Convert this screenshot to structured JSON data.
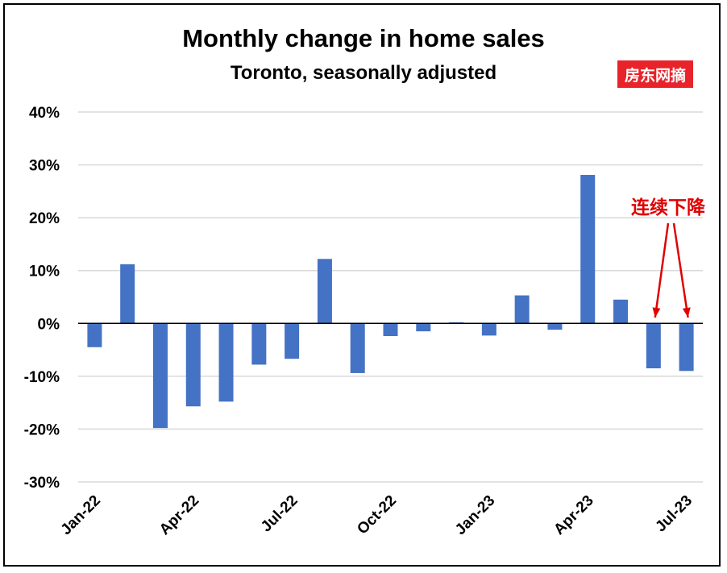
{
  "chart_data": {
    "type": "bar",
    "title": "Monthly change in home sales",
    "subtitle": "Toronto, seasonally adjusted",
    "xlabel": "",
    "ylabel": "",
    "categories": [
      "Jan-22",
      "Feb-22",
      "Mar-22",
      "Apr-22",
      "May-22",
      "Jun-22",
      "Jul-22",
      "Aug-22",
      "Sep-22",
      "Oct-22",
      "Nov-22",
      "Dec-22",
      "Jan-23",
      "Feb-23",
      "Mar-23",
      "Apr-23",
      "May-23",
      "Jun-23",
      "Jul-23"
    ],
    "x_tick_labels": [
      "Jan-22",
      "Apr-22",
      "Jul-22",
      "Oct-22",
      "Jan-23",
      "Apr-23",
      "Jul-23"
    ],
    "x_tick_indices": [
      0,
      3,
      6,
      9,
      12,
      15,
      18
    ],
    "series": [
      {
        "values": [
          -4.5,
          11.2,
          -19.8,
          -15.7,
          -14.8,
          -7.8,
          -6.7,
          12.2,
          -9.4,
          -2.4,
          -1.5,
          0.2,
          -2.3,
          5.3,
          -1.2,
          28.1,
          4.5,
          -8.5,
          -9.0
        ]
      }
    ],
    "ylim": [
      -30,
      40
    ],
    "y_ticks": [
      -30,
      -20,
      -10,
      0,
      10,
      20,
      30,
      40
    ],
    "y_tick_labels": [
      "-30%",
      "-20%",
      "-10%",
      "0%",
      "10%",
      "20%",
      "30%",
      "40%"
    ],
    "grid": true,
    "legend": "none",
    "annotations": [
      {
        "text": "连续下降",
        "color": "#e00000",
        "points_to": [
          "Jun-23",
          "Jul-23"
        ]
      }
    ],
    "colors": {
      "bar": "#4472c4",
      "grid": "#d9d9d9",
      "zero_line": "#000000",
      "annotation": "#e00000"
    }
  },
  "watermark": {
    "text": "房东网摘",
    "background": "#e8232a"
  }
}
